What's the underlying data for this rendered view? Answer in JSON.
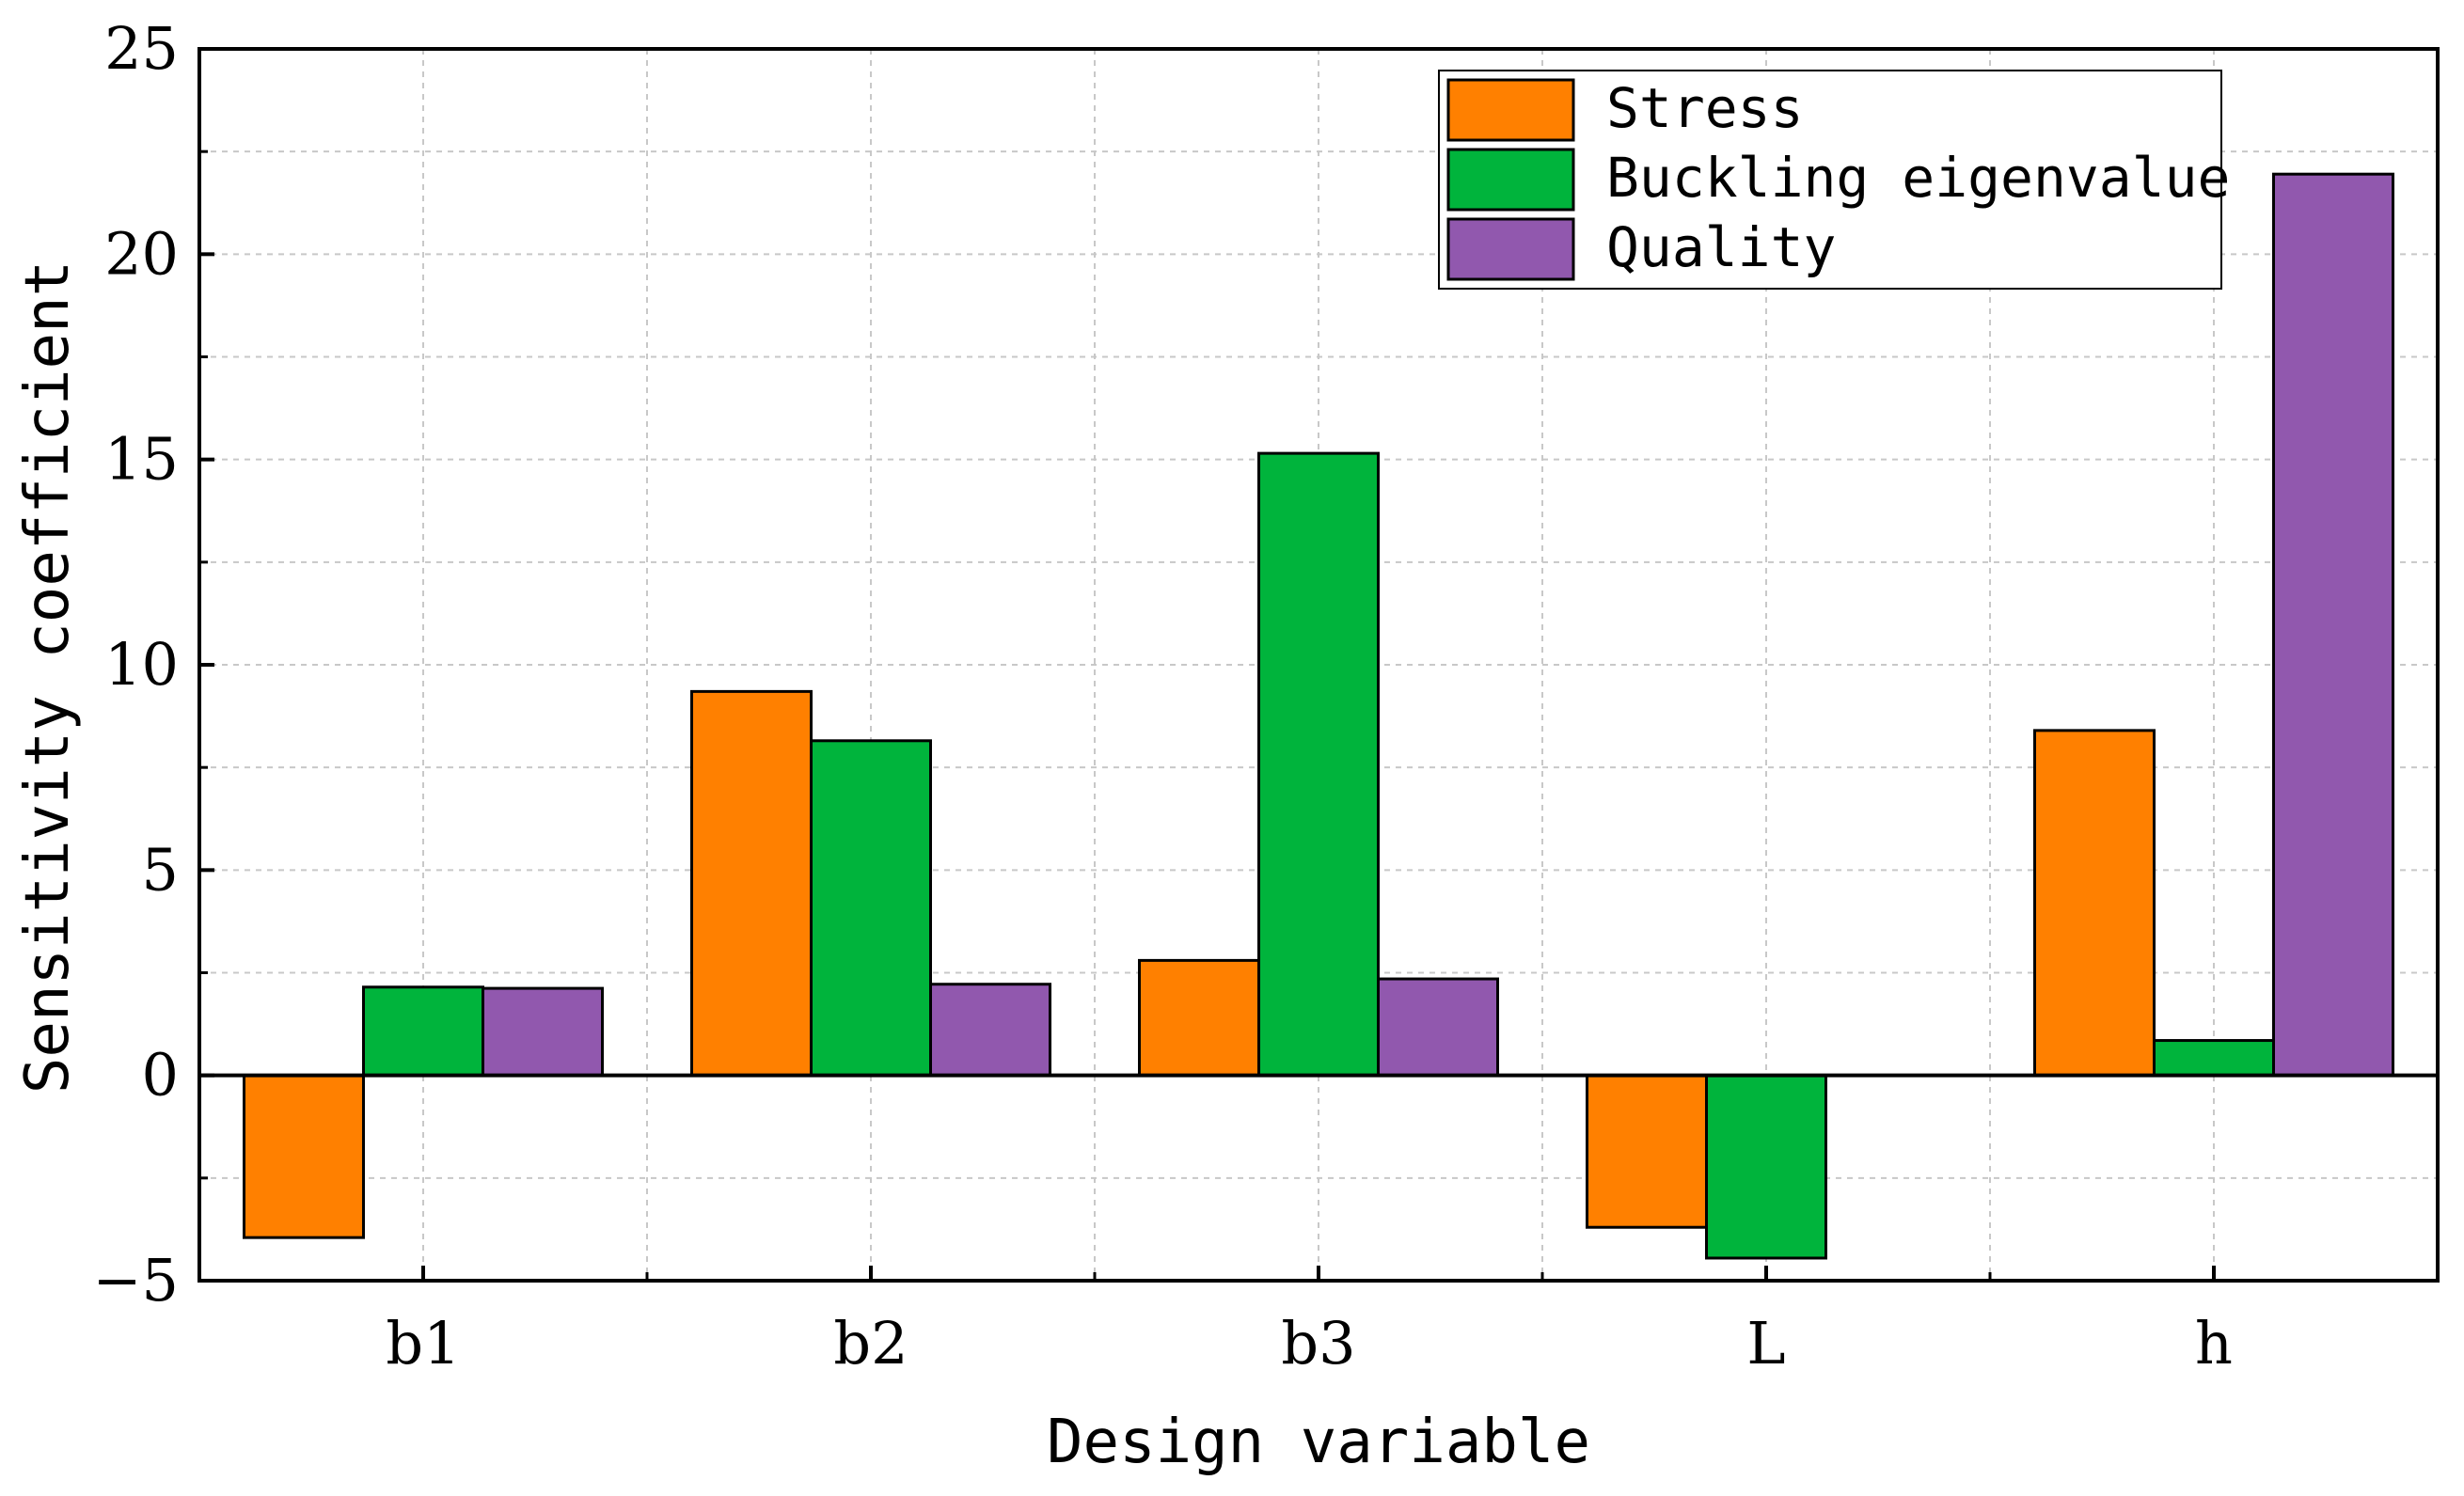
{
  "chart_data": {
    "type": "bar",
    "xlabel": "Design variable",
    "ylabel": "Sensitivity coefficient",
    "ylim": [
      -5,
      25
    ],
    "yticks": [
      -5,
      0,
      5,
      10,
      15,
      20,
      25
    ],
    "categories": [
      "b1",
      "b2",
      "b3",
      "L",
      "h"
    ],
    "series": [
      {
        "name": "Stress",
        "color": "#ff8000",
        "values": [
          -3.95,
          9.35,
          2.8,
          -3.7,
          8.4
        ]
      },
      {
        "name": "Buckling eigenvalue",
        "color": "#00b43c",
        "values": [
          2.15,
          8.15,
          15.15,
          -4.45,
          0.85
        ]
      },
      {
        "name": "Quality",
        "color": "#9158ae",
        "values": [
          2.12,
          2.22,
          2.35,
          0,
          21.95
        ]
      }
    ],
    "legend_position": "top-right",
    "grid": true
  }
}
